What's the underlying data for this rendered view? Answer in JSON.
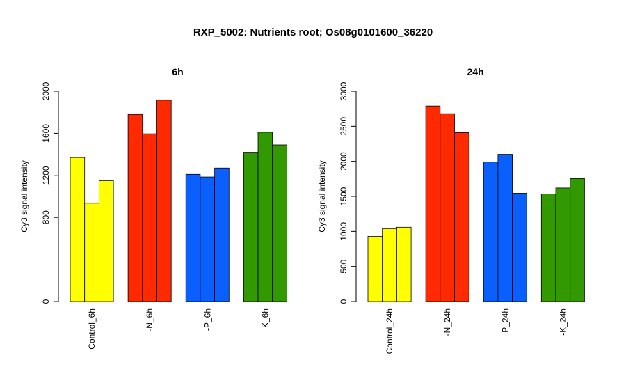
{
  "figure": {
    "title": "RXP_5002: Nutrients root; Os08g0101600_36220"
  },
  "chart_data": [
    {
      "type": "bar",
      "title": "6h",
      "ylabel": "Cy3 signal intensity",
      "ylim": [
        0,
        2000
      ],
      "yticks": [
        0,
        800,
        1200,
        1600,
        2000
      ],
      "categories": [
        "Control_6h",
        "-N_6h",
        "-P_6h",
        "-K_6h"
      ],
      "group_colors": [
        "#FFFF00",
        "#FF2A00",
        "#0A5FFF",
        "#339900"
      ],
      "groups": [
        {
          "label": "Control_6h",
          "values": [
            1370,
            935,
            1150
          ]
        },
        {
          "label": "-N_6h",
          "values": [
            1780,
            1595,
            1915
          ]
        },
        {
          "label": "-P_6h",
          "values": [
            1210,
            1185,
            1270
          ]
        },
        {
          "label": "-K_6h",
          "values": [
            1420,
            1610,
            1490
          ]
        }
      ],
      "grid": false,
      "legend": "none"
    },
    {
      "type": "bar",
      "title": "24h",
      "ylabel": "Cy3 signal intensity",
      "ylim": [
        0,
        3000
      ],
      "yticks": [
        0,
        500,
        1000,
        1500,
        2000,
        2500,
        3000
      ],
      "categories": [
        "Control_24h",
        "-N_24h",
        "-P_24h",
        "-K_24h"
      ],
      "group_colors": [
        "#FFFF00",
        "#FF2A00",
        "#0A5FFF",
        "#339900"
      ],
      "groups": [
        {
          "label": "Control_24h",
          "values": [
            930,
            1040,
            1060
          ]
        },
        {
          "label": "-N_24h",
          "values": [
            2790,
            2680,
            2410
          ]
        },
        {
          "label": "-P_24h",
          "values": [
            1990,
            2100,
            1545
          ]
        },
        {
          "label": "-K_24h",
          "values": [
            1535,
            1620,
            1755
          ]
        }
      ],
      "grid": false,
      "legend": "none"
    }
  ]
}
